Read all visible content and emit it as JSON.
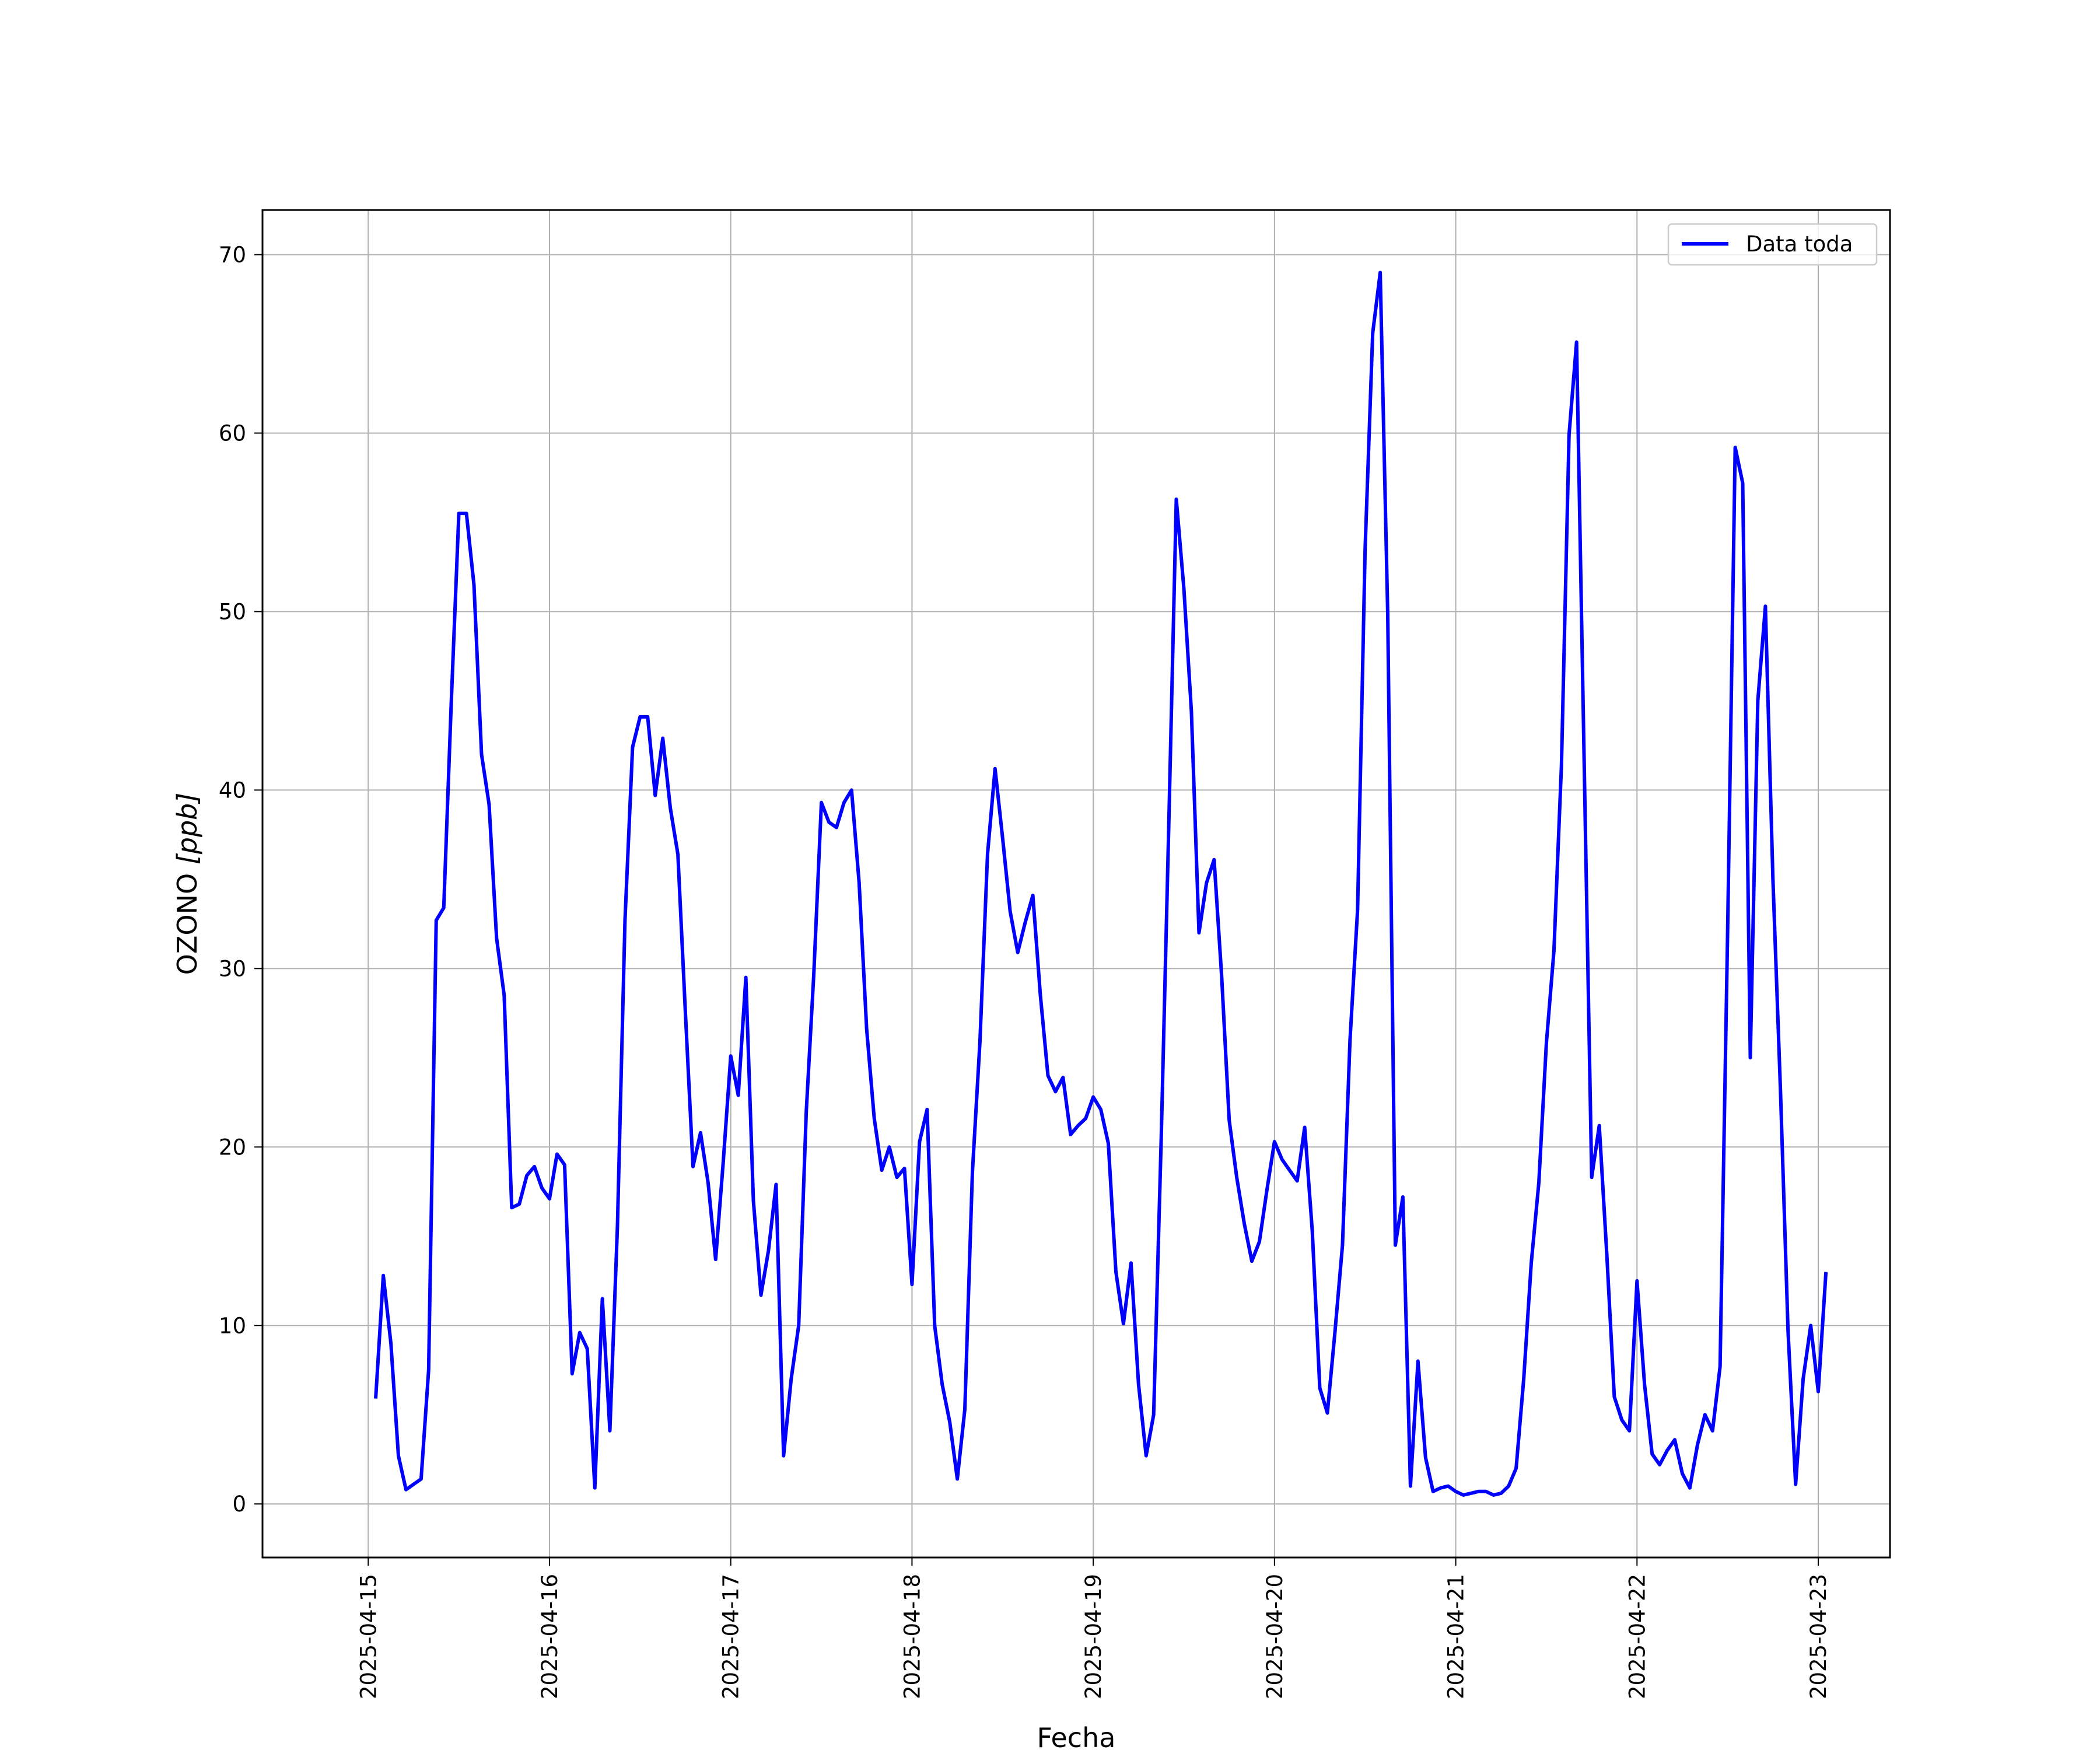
{
  "chart_data": {
    "type": "line",
    "title": "",
    "xlabel": "Fecha",
    "ylabel_main": "OZONO ",
    "ylabel_unit": "[ppb]",
    "x_ticks": [
      "2025-04-15",
      "2025-04-16",
      "2025-04-17",
      "2025-04-18",
      "2025-04-19",
      "2025-04-20",
      "2025-04-21",
      "2025-04-22",
      "2025-04-23"
    ],
    "y_ticks": [
      0,
      10,
      20,
      30,
      40,
      50,
      60,
      70
    ],
    "ylim": [
      -3,
      72.5
    ],
    "xlim": [
      "2025-04-14T10:00",
      "2025-04-23T09:30"
    ],
    "grid": true,
    "legend_position": "upper right",
    "series": [
      {
        "name": "Data toda",
        "color": "#0000ff",
        "start": "2025-04-15T01:00",
        "step_hours": 1,
        "values": [
          6.0,
          12.8,
          9.0,
          2.7,
          0.8,
          1.1,
          1.4,
          7.5,
          32.7,
          33.4,
          45.0,
          55.5,
          55.5,
          51.5,
          42.0,
          39.2,
          31.7,
          28.5,
          16.6,
          16.8,
          18.4,
          18.9,
          17.7,
          17.1,
          19.6,
          19.0,
          7.3,
          9.6,
          8.7,
          0.9,
          11.5,
          4.1,
          15.6,
          32.7,
          42.4,
          44.1,
          44.1,
          39.7,
          42.9,
          39.0,
          36.4,
          27.5,
          18.9,
          20.8,
          18.0,
          13.7,
          19.1,
          25.1,
          22.9,
          29.5,
          17.0,
          11.7,
          14.2,
          17.9,
          2.7,
          7.0,
          10.0,
          22.0,
          29.7,
          39.3,
          38.2,
          37.9,
          39.3,
          40.0,
          34.8,
          26.6,
          21.6,
          18.7,
          20.0,
          18.3,
          18.8,
          12.3,
          20.3,
          22.1,
          10.0,
          6.7,
          4.6,
          1.4,
          5.3,
          18.6,
          25.9,
          36.4,
          41.2,
          37.3,
          33.2,
          30.9,
          32.6,
          34.1,
          28.5,
          24.0,
          23.1,
          23.9,
          20.7,
          21.2,
          21.6,
          22.8,
          22.1,
          20.2,
          13.0,
          10.1,
          13.5,
          6.7,
          2.7,
          5.0,
          20.4,
          38.0,
          56.3,
          51.3,
          44.4,
          32.0,
          34.8,
          36.1,
          29.6,
          21.5,
          18.3,
          15.7,
          13.6,
          14.7,
          17.6,
          20.3,
          19.3,
          18.7,
          18.1,
          21.1,
          15.3,
          6.5,
          5.1,
          9.6,
          14.5,
          26.0,
          33.3,
          53.5,
          65.6,
          69.0,
          49.8,
          14.5,
          17.2,
          1.0,
          8.0,
          2.6,
          0.7,
          0.9,
          1.0,
          0.7,
          0.5,
          0.6,
          0.7,
          0.7,
          0.5,
          0.6,
          1.0,
          2.0,
          7.0,
          13.5,
          18.0,
          25.8,
          31.0,
          41.4,
          59.9,
          65.1,
          41.6,
          18.3,
          21.2,
          14.0,
          6.0,
          4.7,
          4.1,
          12.5,
          6.7,
          2.8,
          2.2,
          3.0,
          3.6,
          1.7,
          0.9,
          3.3,
          5.0,
          4.1,
          7.7,
          32.0,
          59.2,
          57.2,
          25.0,
          45.0,
          50.3,
          35.0,
          23.1,
          9.7,
          1.1,
          7.0,
          10.0,
          6.3,
          12.9
        ]
      }
    ]
  }
}
